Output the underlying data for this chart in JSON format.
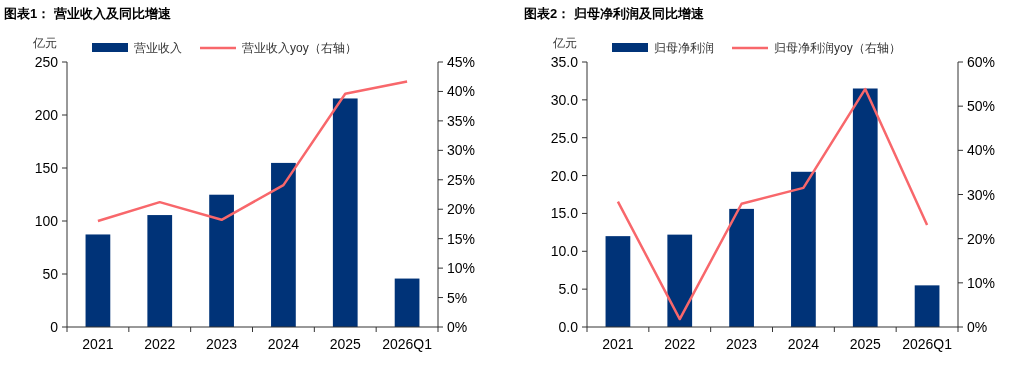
{
  "chart_data": [
    {
      "type": "bar",
      "title": "图表1： 营业收入及同比增速",
      "ylabel": "亿元",
      "categories": [
        "2021",
        "2022",
        "2023",
        "2024",
        "2025",
        "2026Q1"
      ],
      "series": [
        {
          "name": "营业收入",
          "color": "#003378",
          "values": [
            87.3,
            105.6,
            124.8,
            154.8,
            215.6,
            45.7
          ]
        },
        {
          "name": "营业收入yoy（右轴）",
          "type": "line",
          "axis": "y2",
          "color": "#f8676b",
          "values": [
            18.0,
            21.2,
            18.2,
            24.1,
            39.6,
            41.7
          ]
        }
      ],
      "ylim": [
        0,
        250
      ],
      "yticks": [
        0,
        50,
        100,
        150,
        200,
        250
      ],
      "y2lim": [
        0,
        45
      ],
      "y2ticks": [
        {
          "value": 0,
          "label": "0%"
        },
        {
          "value": 5,
          "label": "5%"
        },
        {
          "value": 10,
          "label": "10%"
        },
        {
          "value": 15,
          "label": "15%"
        },
        {
          "value": 20,
          "label": "20%"
        },
        {
          "value": 25,
          "label": "25%"
        },
        {
          "value": 30,
          "label": "30%"
        },
        {
          "value": 35,
          "label": "35%"
        },
        {
          "value": 40,
          "label": "40%"
        },
        {
          "value": 45,
          "label": "45%"
        }
      ],
      "legend": "top",
      "grid": false,
      "marker": "none"
    },
    {
      "type": "bar",
      "title": "图表2： 归母净利润及同比增速",
      "ylabel": "亿元",
      "categories": [
        "2021",
        "2022",
        "2023",
        "2024",
        "2025",
        "2026Q1"
      ],
      "series": [
        {
          "name": "归母净利润",
          "color": "#003378",
          "values": [
            12.0,
            12.2,
            15.6,
            20.5,
            31.5,
            5.5
          ]
        },
        {
          "name": "归母净利润yoy（右轴）",
          "type": "line",
          "axis": "y2",
          "color": "#f8676b",
          "values": [
            28.4,
            1.8,
            27.9,
            31.5,
            53.9,
            23.1
          ]
        }
      ],
      "ylim": [
        0,
        35
      ],
      "yticks": [
        {
          "value": 0,
          "label": "0.0"
        },
        {
          "value": 5,
          "label": "5.0"
        },
        {
          "value": 10,
          "label": "10.0"
        },
        {
          "value": 15,
          "label": "15.0"
        },
        {
          "value": 20,
          "label": "20.0"
        },
        {
          "value": 25,
          "label": "25.0"
        },
        {
          "value": 30,
          "label": "30.0"
        },
        {
          "value": 35,
          "label": "35.0"
        }
      ],
      "y2lim": [
        0,
        60
      ],
      "y2ticks": [
        {
          "value": 0,
          "label": "0%"
        },
        {
          "value": 10,
          "label": "10%"
        },
        {
          "value": 20,
          "label": "20%"
        },
        {
          "value": 30,
          "label": "30%"
        },
        {
          "value": 40,
          "label": "40%"
        },
        {
          "value": 50,
          "label": "50%"
        },
        {
          "value": 60,
          "label": "60%"
        }
      ],
      "legend": "top",
      "grid": false,
      "marker": "none"
    }
  ]
}
